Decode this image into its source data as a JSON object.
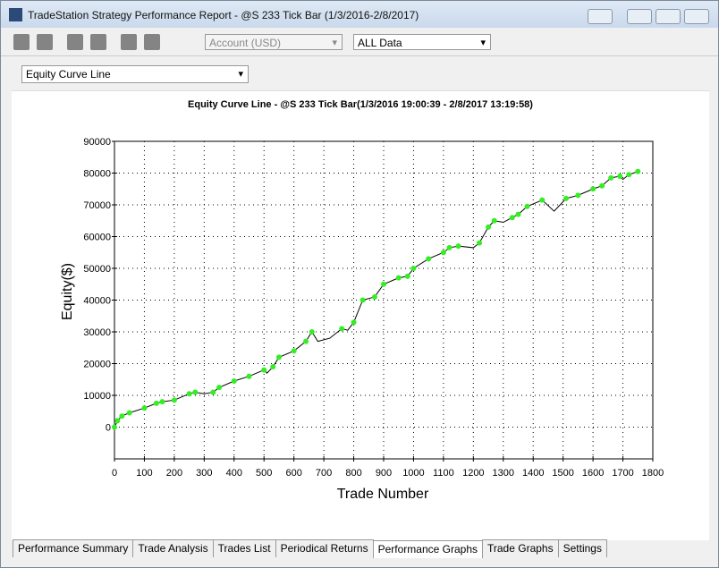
{
  "window": {
    "title": "TradeStation Strategy Performance Report - @S 233 Tick Bar (1/3/2016-2/8/2017)",
    "account": "Account (USD)",
    "data_range": "ALL Data",
    "graph_select": "Equity Curve Line",
    "tabs": [
      "Performance Summary",
      "Trade Analysis",
      "Trades List",
      "Periodical Returns",
      "Performance Graphs",
      "Trade Graphs",
      "Settings"
    ],
    "active_tab": "Performance Graphs"
  },
  "chart_data": {
    "type": "line",
    "title": "Equity Curve Line - @S 233 Tick Bar(1/3/2016 19:00:39 - 2/8/2017 13:19:58)",
    "x_label": "Trade Number",
    "y_label": "Equity($)",
    "x": [
      0,
      10,
      25,
      50,
      100,
      140,
      160,
      200,
      250,
      270,
      300,
      330,
      350,
      400,
      450,
      500,
      510,
      530,
      550,
      600,
      640,
      660,
      680,
      720,
      760,
      780,
      800,
      830,
      870,
      900,
      950,
      980,
      1000,
      1050,
      1100,
      1120,
      1150,
      1200,
      1220,
      1250,
      1270,
      1300,
      1330,
      1350,
      1380,
      1430,
      1470,
      1490,
      1510,
      1550,
      1600,
      1630,
      1660,
      1690,
      1700,
      1720,
      1750
    ],
    "values": [
      0,
      2000,
      3500,
      4500,
      6000,
      7500,
      8000,
      8500,
      10500,
      11000,
      10500,
      11000,
      12500,
      14500,
      16000,
      18000,
      17000,
      19000,
      22000,
      24000,
      27000,
      30000,
      27000,
      28000,
      31000,
      30500,
      33000,
      40000,
      41000,
      45000,
      47000,
      47500,
      50000,
      53000,
      55000,
      56500,
      57000,
      56500,
      58000,
      63000,
      65000,
      64500,
      66000,
      67000,
      69500,
      71500,
      68000,
      70000,
      72000,
      73000,
      75000,
      76000,
      78500,
      79000,
      78000,
      79500,
      80500
    ],
    "color": "#000000",
    "new_high_color": "#33ee22",
    "xlim": [
      0,
      1800
    ],
    "xticks": [
      0,
      100,
      200,
      300,
      400,
      500,
      600,
      700,
      800,
      900,
      1000,
      1100,
      1200,
      1300,
      1400,
      1500,
      1600,
      1700,
      1800
    ],
    "ylim": [
      -10000,
      90000
    ],
    "yticks": [
      0,
      10000,
      20000,
      30000,
      40000,
      50000,
      60000,
      70000,
      80000,
      90000
    ],
    "grid": true
  }
}
